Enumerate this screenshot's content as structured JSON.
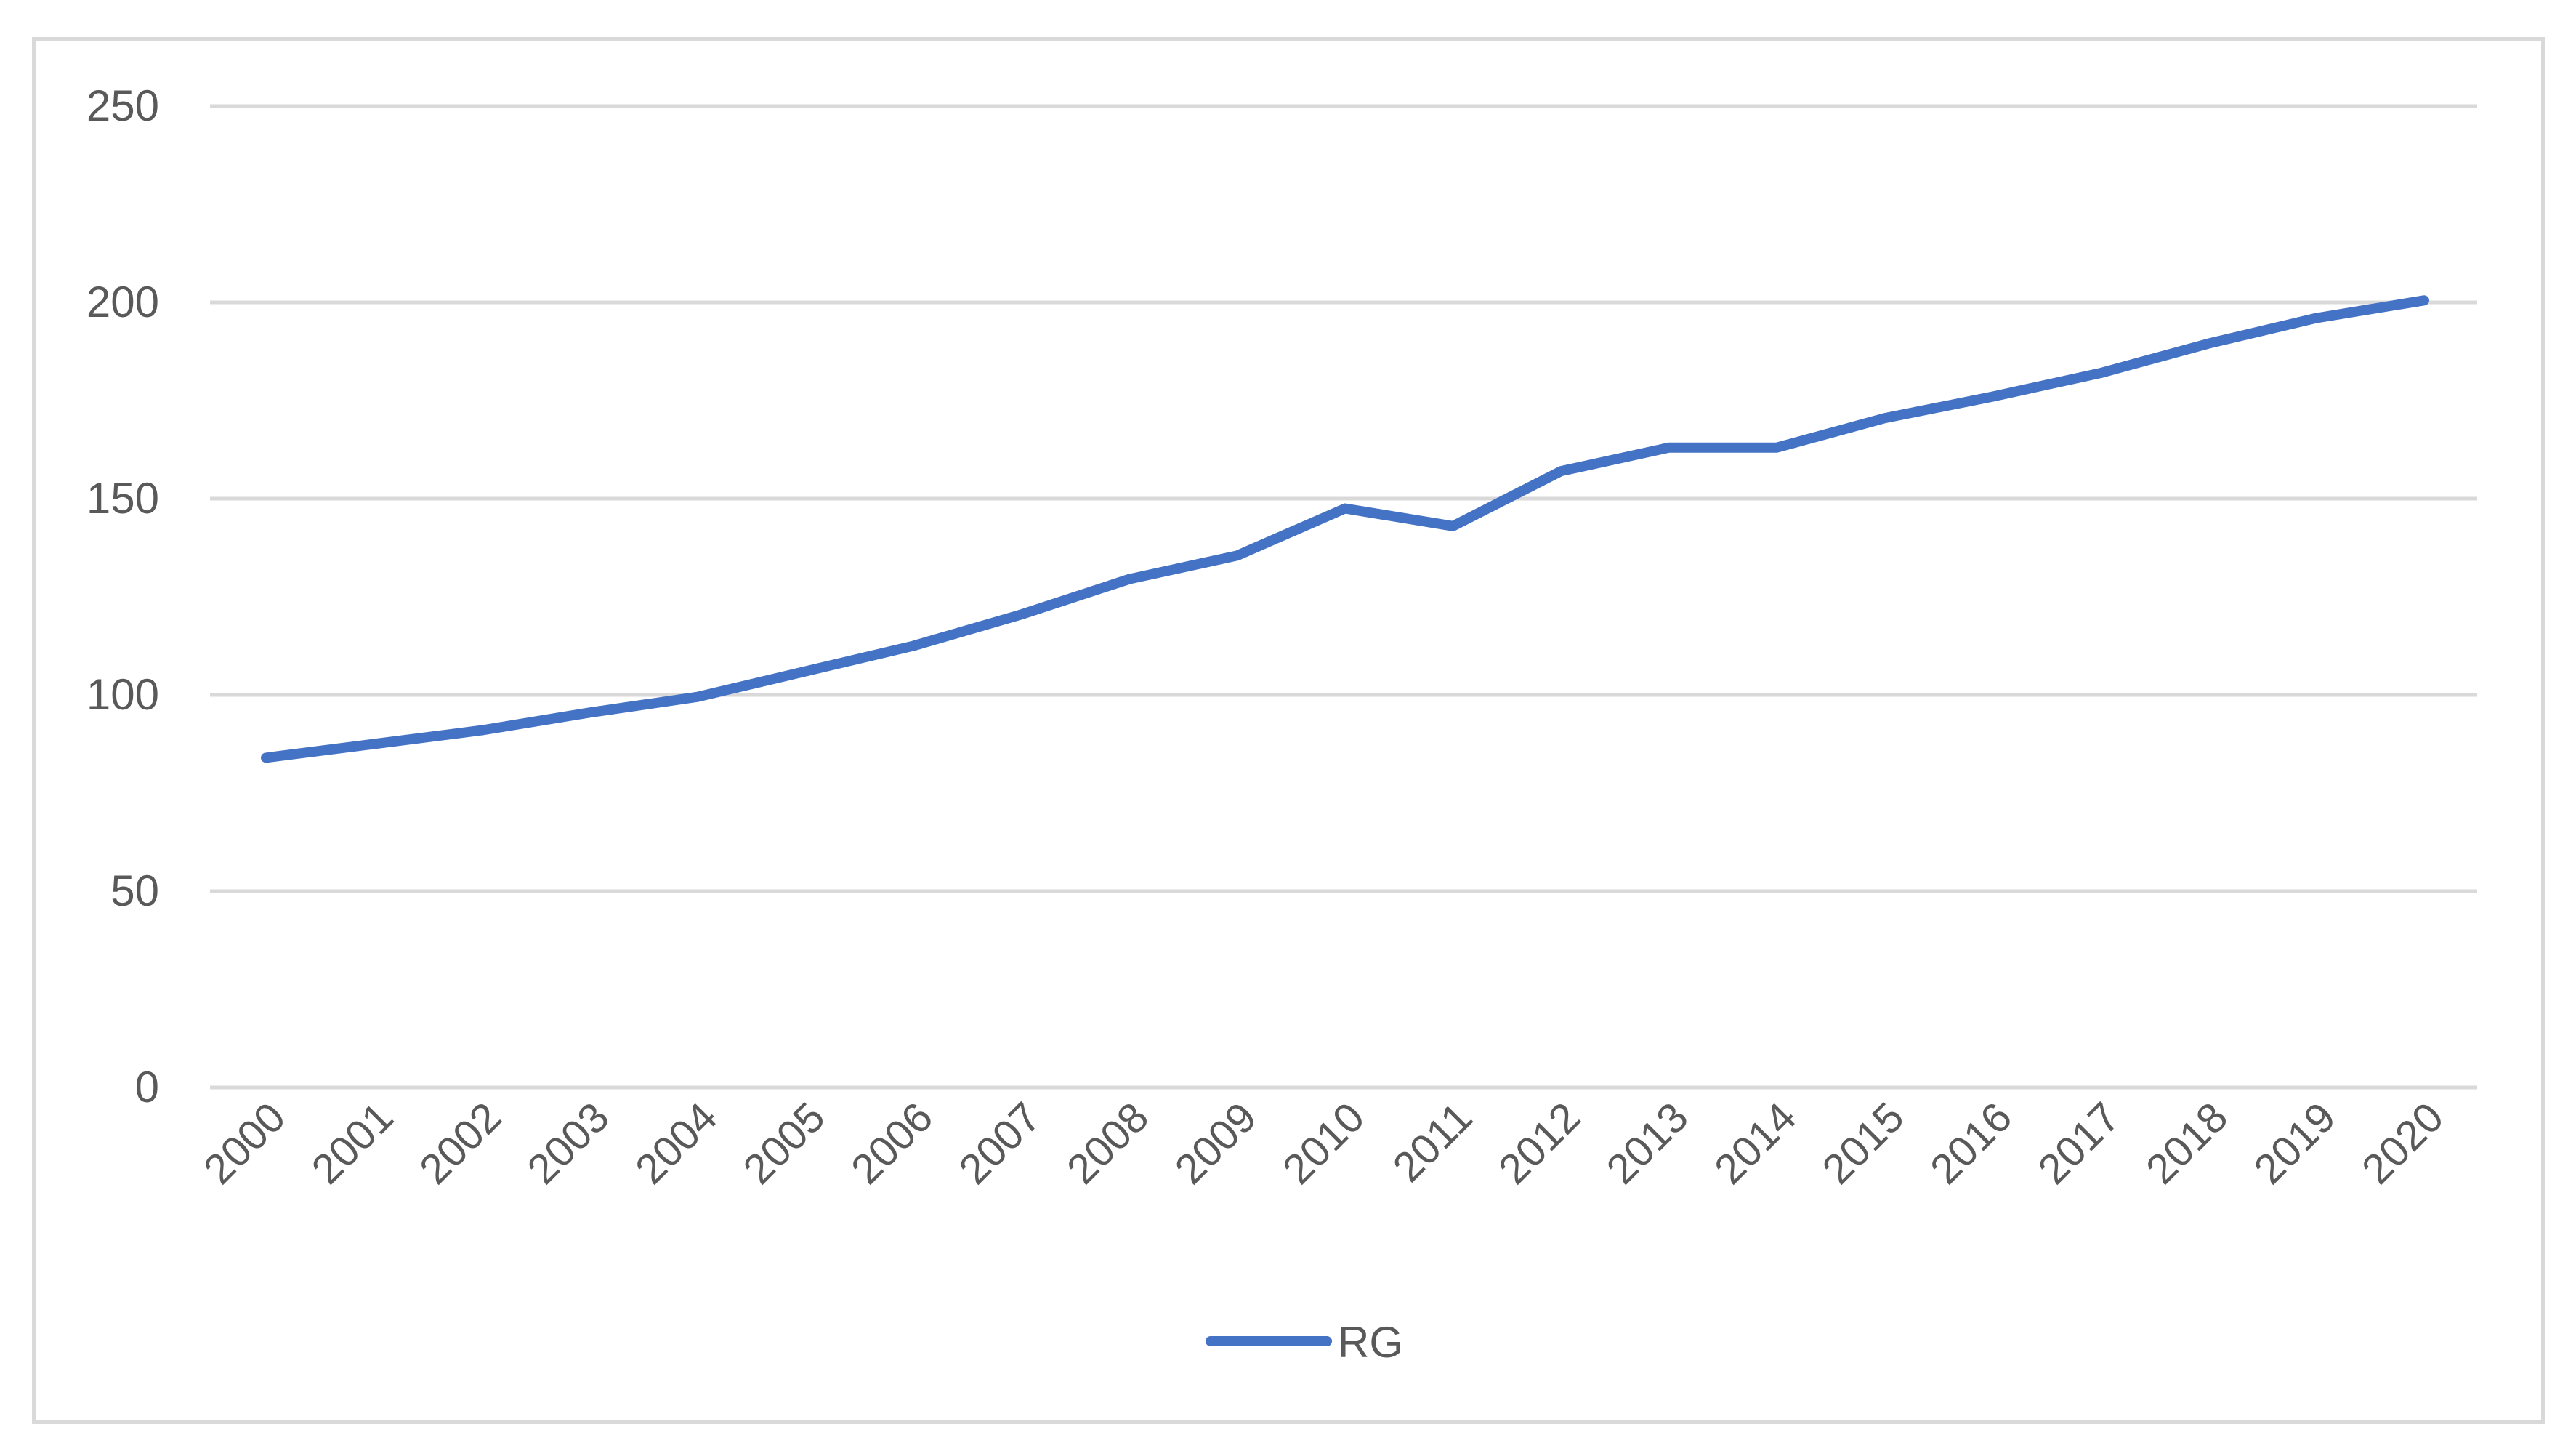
{
  "chart_data": {
    "type": "line",
    "title": "",
    "xlabel": "",
    "ylabel": "",
    "x": [
      "2000",
      "2001",
      "2002",
      "2003",
      "2004",
      "2005",
      "2006",
      "2007",
      "2008",
      "2009",
      "2010",
      "2011",
      "2012",
      "2013",
      "2014",
      "2015",
      "2016",
      "2017",
      "2018",
      "2019",
      "2020"
    ],
    "y_ticks": [
      "0",
      "50",
      "100",
      "150",
      "200",
      "250"
    ],
    "ylim": [
      0,
      250
    ],
    "grid": true,
    "legend_position": "bottom",
    "series": [
      {
        "name": "RG",
        "color": "#4472c4",
        "values": [
          84,
          87.5,
          91,
          95.5,
          99.5,
          106,
          112.5,
          120.5,
          129.5,
          135.5,
          147.5,
          143,
          157,
          163,
          163,
          170.5,
          176,
          182,
          189.5,
          196,
          200.5
        ]
      }
    ]
  },
  "colors": {
    "gridline": "#d9d9d9",
    "axis_text": "#595959",
    "border": "#d9d9d9"
  }
}
